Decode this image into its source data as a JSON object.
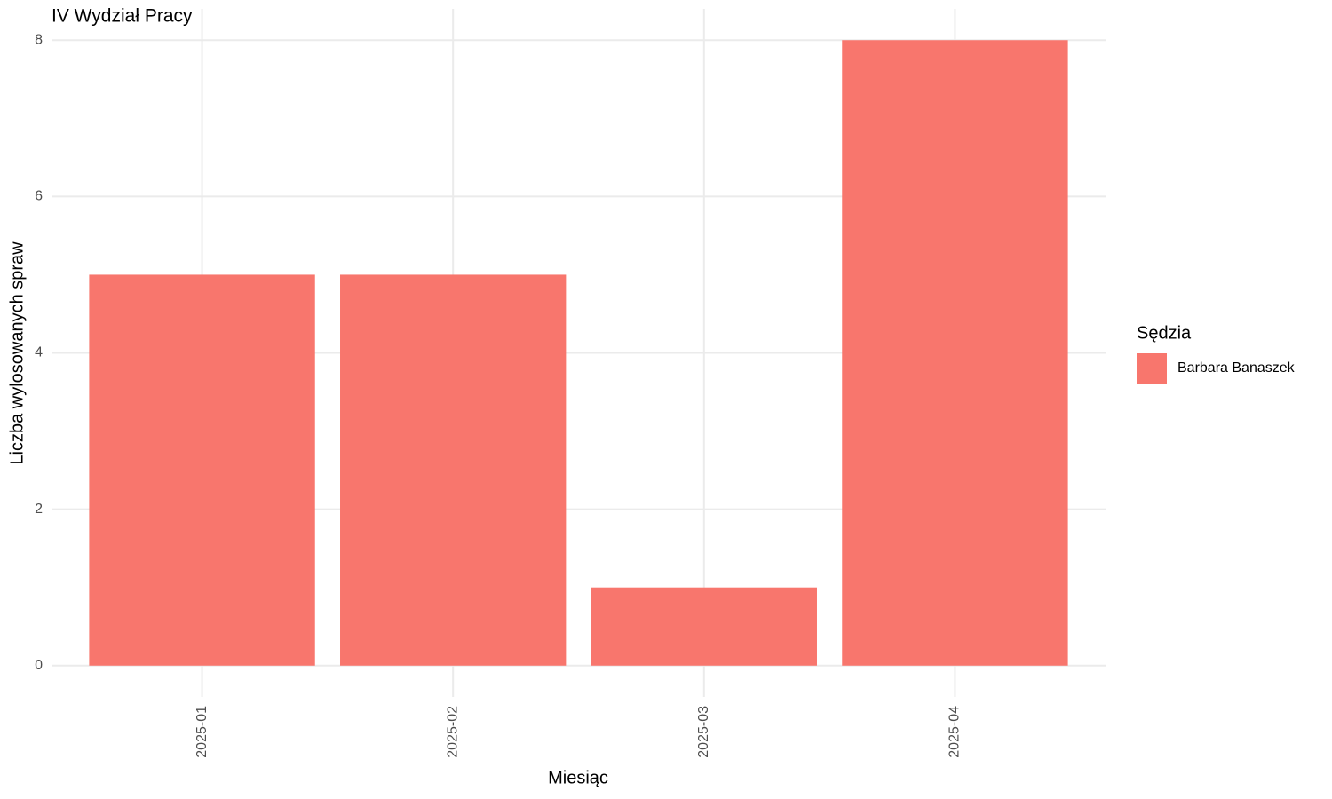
{
  "chart_data": {
    "type": "bar",
    "title": "IV Wydział Pracy",
    "x_label": "Miesiąc",
    "y_label": "Liczba wylosowanych spraw",
    "legend_title": "Sędzia",
    "categories": [
      "2025-01",
      "2025-02",
      "2025-03",
      "2025-04"
    ],
    "series": [
      {
        "name": "Barbara Banaszek",
        "color": "#F8766D",
        "values": [
          5,
          5,
          1,
          8
        ]
      }
    ],
    "ylim": [
      -0.4,
      8.4
    ],
    "yticks": [
      0,
      2,
      4,
      6,
      8
    ],
    "grid": true,
    "legend": "right"
  }
}
